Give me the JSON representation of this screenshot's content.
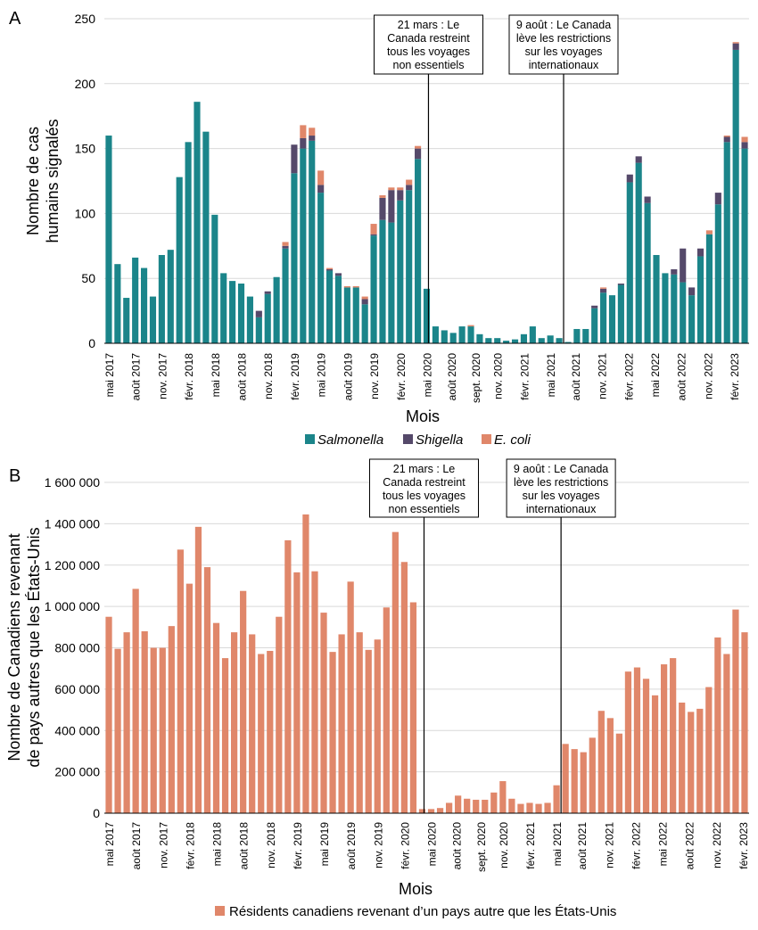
{
  "chart_data": [
    {
      "panel_label": "A",
      "type": "bar",
      "stacked": true,
      "ylabel": [
        "Nombre de cas",
        "humains signalés"
      ],
      "xlabel": "Mois",
      "ylim": [
        0,
        250
      ],
      "yticks": [
        "0",
        "50",
        "100",
        "150",
        "200",
        "250"
      ],
      "ytick_values": [
        0,
        50,
        100,
        150,
        200,
        250
      ],
      "grid": true,
      "xtick_labels": [
        "mai 2017",
        "août 2017",
        "nov. 2017",
        "févr. 2018",
        "mai 2018",
        "août 2018",
        "nov. 2018",
        "févr. 2019",
        "mai 2019",
        "août 2019",
        "nov. 2019",
        "févr. 2020",
        "mai 2020",
        "août 2020",
        "sept. 2020",
        "nov. 2020",
        "févr. 2021",
        "mai 2021",
        "août 2021",
        "nov. 2021",
        "févr. 2022",
        "mai 2022",
        "août 2022",
        "nov. 2022",
        "févr. 2023"
      ],
      "xtick_positions": [
        0,
        3,
        6,
        9,
        12,
        15,
        18,
        21,
        24,
        27,
        30,
        33,
        36,
        38.8,
        41.5,
        44,
        47,
        50,
        52.8,
        55.8,
        58.8,
        61.8,
        64.8,
        67.8,
        70.8
      ],
      "series": [
        {
          "name": "Salmonella",
          "italic": true,
          "color": "#1b858a",
          "values": [
            160,
            61,
            35,
            66,
            58,
            36,
            68,
            72,
            128,
            155,
            186,
            163,
            99,
            54,
            48,
            46,
            36,
            20,
            38,
            51,
            73,
            131,
            150,
            156,
            116,
            56,
            52,
            43,
            43,
            30,
            83,
            95,
            93,
            110,
            118,
            142,
            42,
            13,
            10,
            8,
            13,
            13,
            7,
            4,
            4,
            2,
            3,
            7,
            13,
            4,
            6,
            4,
            1,
            11,
            11,
            27,
            39,
            37,
            45,
            124,
            139,
            108,
            68,
            54,
            53,
            47,
            37,
            67,
            84,
            107,
            155,
            226,
            150
          ]
        },
        {
          "name": "Shigella",
          "italic": true,
          "color": "#55496a",
          "values": [
            0,
            0,
            0,
            0,
            0,
            0,
            0,
            0,
            0,
            0,
            0,
            0,
            0,
            0,
            0,
            0,
            0,
            5,
            2,
            0,
            2,
            22,
            8,
            4,
            6,
            1,
            2,
            0,
            0,
            4,
            1,
            17,
            25,
            8,
            4,
            8,
            0,
            0,
            0,
            0,
            0,
            0,
            0,
            0,
            0,
            0,
            0,
            0,
            0,
            0,
            0,
            0,
            0,
            0,
            0,
            2,
            3,
            0,
            1,
            6,
            5,
            5,
            0,
            0,
            4,
            26,
            6,
            6,
            0,
            9,
            4,
            5,
            5
          ]
        },
        {
          "name": "E. coli",
          "italic": true,
          "color": "#e0876a",
          "values": [
            0,
            0,
            0,
            0,
            0,
            0,
            0,
            0,
            0,
            0,
            0,
            0,
            0,
            0,
            0,
            0,
            0,
            0,
            0,
            0,
            3,
            0,
            10,
            6,
            11,
            1,
            0,
            1,
            1,
            2,
            8,
            2,
            2,
            2,
            4,
            2,
            0,
            0,
            0,
            0,
            0,
            1,
            0,
            0,
            0,
            0,
            0,
            0,
            0,
            0,
            0,
            0,
            0,
            0,
            0,
            0,
            1,
            0,
            0,
            0,
            0,
            0,
            0,
            0,
            0,
            0,
            0,
            0,
            3,
            0,
            1,
            1,
            4
          ]
        }
      ],
      "annotations": [
        {
          "lines": [
            "21 mars : Le",
            "Canada restreint",
            "tous les voyages",
            "non essentiels"
          ],
          "at_index": 35.8
        },
        {
          "lines": [
            "9 août : Le Canada",
            "lève les restrictions",
            "sur les voyages",
            "internationaux"
          ],
          "at_index": 51.1
        }
      ],
      "legend_position": "bottom-center"
    },
    {
      "panel_label": "B",
      "type": "bar",
      "ylabel": [
        "Nombre de Canadiens revenant",
        "de pays autres que les États-Unis"
      ],
      "xlabel": "Mois",
      "ylim": [
        0,
        1600000
      ],
      "yticks": [
        "0",
        "200 000",
        "400 000",
        "600 000",
        "800 000",
        "1 000 000",
        "1 200 000",
        "1 400 000",
        "1 600 000"
      ],
      "ytick_values": [
        0,
        200000,
        400000,
        600000,
        800000,
        1000000,
        1200000,
        1400000,
        1600000
      ],
      "grid": true,
      "xtick_labels": [
        "mai 2017",
        "août 2017",
        "nov. 2017",
        "févr. 2018",
        "mai 2018",
        "août 2018",
        "nov. 2018",
        "févr. 2019",
        "mai 2019",
        "août 2019",
        "nov. 2019",
        "févr. 2020",
        "mai 2020",
        "août 2020",
        "sept. 2020",
        "nov. 2020",
        "févr. 2021",
        "mai 2021",
        "août 2021",
        "nov. 2021",
        "févr. 2022",
        "mai 2022",
        "août 2022",
        "nov. 2022",
        "févr. 2023"
      ],
      "xtick_positions": [
        0,
        3,
        6,
        9,
        12,
        15,
        18,
        21,
        24,
        27,
        30,
        33,
        36,
        38.8,
        41.5,
        44,
        47,
        50,
        52.8,
        55.8,
        58.8,
        61.8,
        64.8,
        67.8,
        70.8
      ],
      "series": [
        {
          "name": "Résidents canadiens revenant d’un pays autre que les États-Unis",
          "color": "#e0876a",
          "values": [
            950000,
            795000,
            875000,
            1085000,
            880000,
            800000,
            800000,
            905000,
            1275000,
            1110000,
            1385000,
            1190000,
            920000,
            750000,
            875000,
            1075000,
            865000,
            770000,
            785000,
            950000,
            1320000,
            1165000,
            1445000,
            1170000,
            970000,
            780000,
            865000,
            1120000,
            875000,
            790000,
            840000,
            995000,
            1360000,
            1215000,
            1020000,
            20000,
            20000,
            25000,
            50000,
            85000,
            70000,
            65000,
            65000,
            100000,
            155000,
            70000,
            45000,
            50000,
            45000,
            50000,
            135000,
            335000,
            310000,
            295000,
            365000,
            495000,
            460000,
            385000,
            685000,
            705000,
            650000,
            570000,
            720000,
            750000,
            535000,
            490000,
            505000,
            610000,
            850000,
            770000,
            985000,
            875000
          ]
        }
      ],
      "annotations": [
        {
          "lines": [
            "21 mars : Le",
            "Canada restreint",
            "tous les voyages",
            "non essentiels"
          ],
          "at_index": 34.8
        },
        {
          "lines": [
            "9 août : Le Canada",
            "lève les restrictions",
            "sur les voyages",
            "internationaux"
          ],
          "at_index": 50.1
        }
      ],
      "legend_position": "bottom-center"
    }
  ]
}
